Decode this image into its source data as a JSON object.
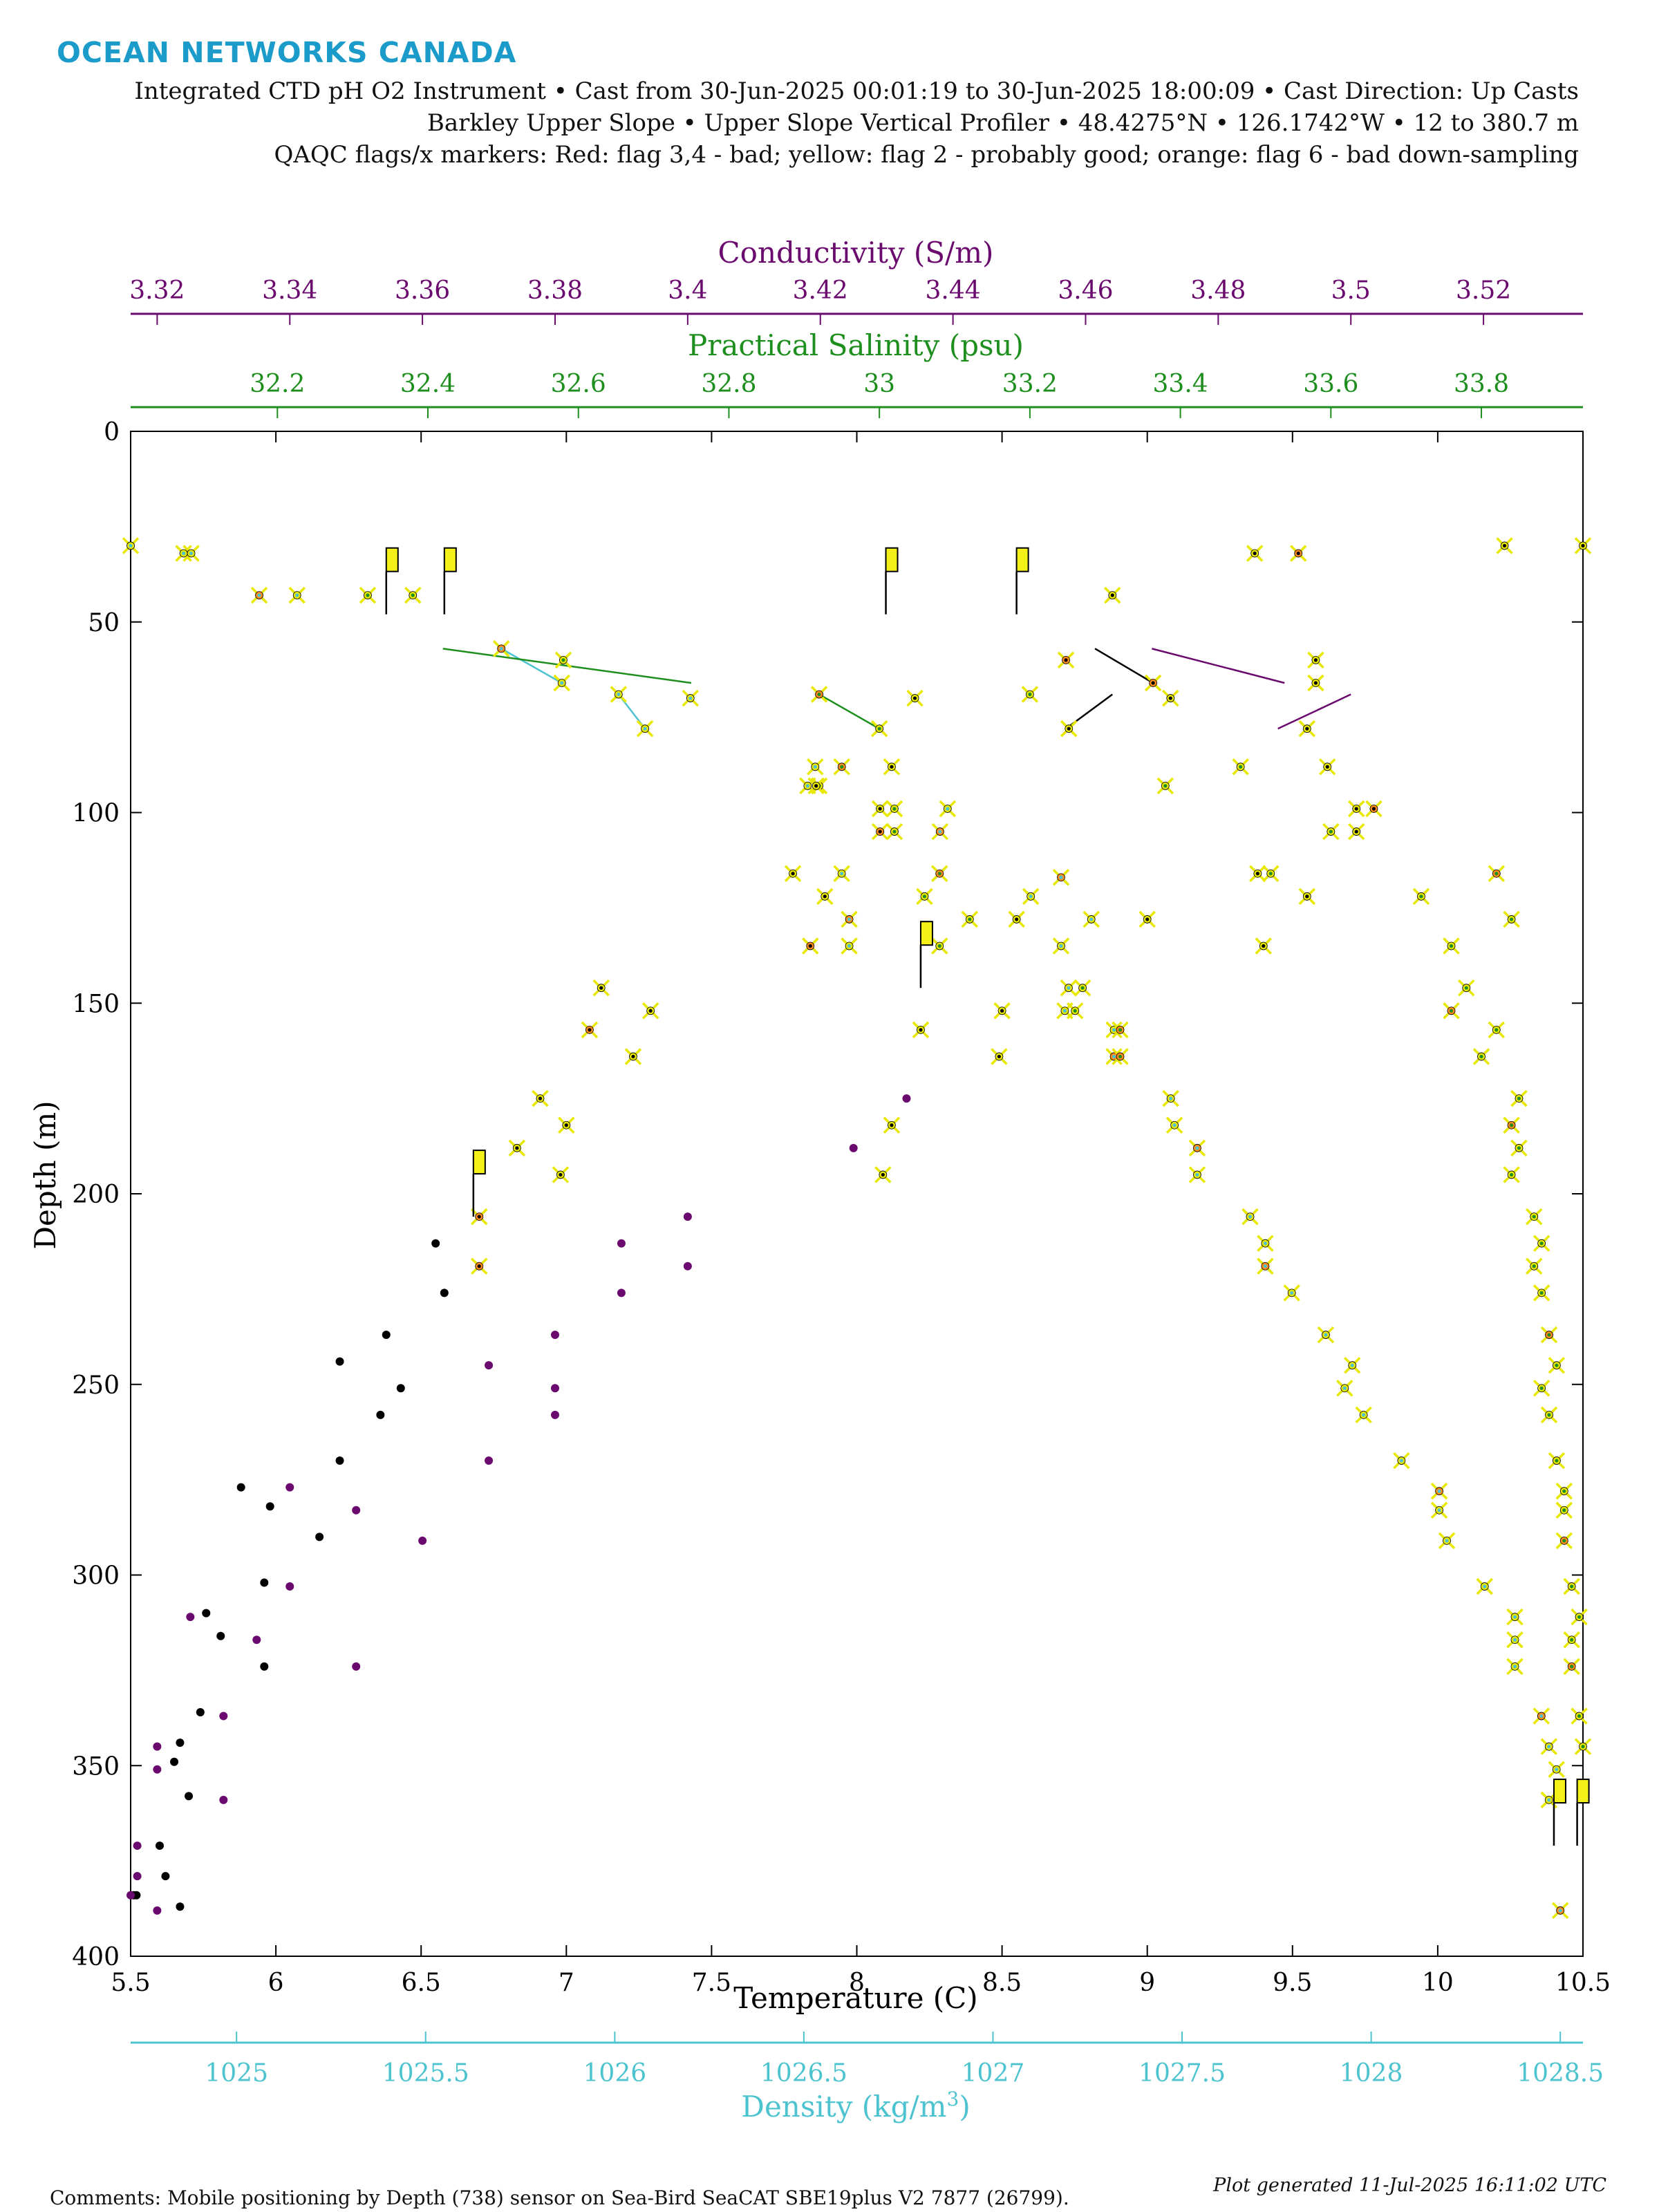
{
  "header": {
    "logo": "OCEAN NETWORKS CANADA",
    "line1": "Integrated CTD pH O2 Instrument • Cast from 30-Jun-2025 00:01:19 to 30-Jun-2025 18:00:09 • Cast Direction: Up Casts",
    "line2": "Barkley Upper Slope • Upper Slope Vertical Profiler • 48.4275°N • 126.1742°W • 12 to 380.7 m",
    "line3": "QAQC flags/x markers: Red: flag 3,4 - bad; yellow: flag 2 - probably good; orange: flag 6 - bad down-sampling"
  },
  "footer": {
    "comments": "Comments: Mobile positioning by Depth (738) sensor on Sea-Bird SeaCAT SBE19plus V2 7877 (26799).",
    "generated": "Plot generated 11-Jul-2025 16:11:02 UTC"
  },
  "colors": {
    "conductivity": "#6b0a6e",
    "salinity": "#1e8f1e",
    "density": "#4cc3cf",
    "temperature": "#000000",
    "flag_yellow": "#e8e800",
    "flag_orange": "#ff8c1a",
    "flag_red": "#e0201e",
    "flag_box": "#f3f01a"
  },
  "chart_data": {
    "type": "scatter",
    "ylabel": "Depth (m)",
    "y_axis": {
      "reversed": true,
      "range": [
        0,
        400
      ],
      "ticks": [
        "0",
        "50",
        "100",
        "150",
        "200",
        "250",
        "300",
        "350",
        "400"
      ]
    },
    "axes": {
      "temperature": {
        "label": "Temperature (C)",
        "range": [
          5.5,
          10.5
        ],
        "ticks": [
          "5.5",
          "6",
          "6.5",
          "7",
          "7.5",
          "8",
          "8.5",
          "9",
          "9.5",
          "10",
          "10.5"
        ],
        "position": "bottom"
      },
      "density": {
        "label": "Density (kg/m³)",
        "label_main": "Density (kg/m",
        "label_sup": "3",
        "label_end": ")",
        "range": [
          1024.72,
          1028.56
        ],
        "ticks": [
          "1025",
          "1025.5",
          "1026",
          "1026.5",
          "1027",
          "1027.5",
          "1028",
          "1028.5"
        ],
        "position": "bottom"
      },
      "conductivity": {
        "label": "Conductivity (S/m)",
        "range": [
          3.316,
          3.535
        ],
        "ticks": [
          "3.32",
          "3.34",
          "3.36",
          "3.38",
          "3.4",
          "3.42",
          "3.44",
          "3.46",
          "3.48",
          "3.5",
          "3.52"
        ],
        "position": "top"
      },
      "salinity": {
        "label": "Practical Salinity (psu)",
        "range": [
          32.005,
          33.935
        ],
        "ticks": [
          "32.2",
          "32.4",
          "32.6",
          "32.8",
          "33",
          "33.2",
          "33.4",
          "33.6",
          "33.8"
        ],
        "position": "top"
      }
    },
    "series": [
      {
        "key": "density",
        "flags": "x",
        "points": [
          [
            1024.72,
            30
          ],
          [
            1024.86,
            32
          ],
          [
            1024.88,
            32
          ],
          [
            1025.06,
            43
          ],
          [
            1025.16,
            43
          ],
          [
            1025.7,
            57
          ],
          [
            1025.86,
            66
          ],
          [
            1026.01,
            69
          ],
          [
            1026.08,
            78
          ],
          [
            1026.2,
            70
          ],
          [
            1026.62,
            128
          ],
          [
            1026.53,
            88
          ],
          [
            1026.51,
            93
          ],
          [
            1026.6,
            116
          ],
          [
            1026.62,
            135
          ],
          [
            1026.88,
            99
          ],
          [
            1026.86,
            105
          ],
          [
            1027.18,
            117
          ],
          [
            1027.1,
            122
          ],
          [
            1027.26,
            128
          ],
          [
            1027.18,
            135
          ],
          [
            1027.2,
            146
          ],
          [
            1027.19,
            152
          ],
          [
            1027.32,
            157
          ],
          [
            1027.32,
            164
          ],
          [
            1027.47,
            175
          ],
          [
            1027.48,
            182
          ],
          [
            1027.54,
            188
          ],
          [
            1027.54,
            195
          ],
          [
            1027.68,
            206
          ],
          [
            1027.72,
            213
          ],
          [
            1027.72,
            219
          ],
          [
            1027.79,
            226
          ],
          [
            1027.88,
            237
          ],
          [
            1027.95,
            245
          ],
          [
            1027.93,
            251
          ],
          [
            1027.98,
            258
          ],
          [
            1028.08,
            270
          ],
          [
            1028.18,
            278
          ],
          [
            1028.18,
            283
          ],
          [
            1028.2,
            291
          ],
          [
            1028.3,
            303
          ],
          [
            1028.38,
            311
          ],
          [
            1028.38,
            317
          ],
          [
            1028.38,
            324
          ],
          [
            1028.45,
            337
          ],
          [
            1028.47,
            345
          ],
          [
            1028.49,
            351
          ],
          [
            1028.47,
            359
          ],
          [
            1028.5,
            388
          ]
        ]
      },
      {
        "key": "salinity",
        "flags": "x",
        "points": [
          [
            32.32,
            43
          ],
          [
            32.38,
            43
          ],
          [
            32.58,
            60
          ],
          [
            32.92,
            69
          ],
          [
            33.0,
            78
          ],
          [
            32.95,
            88
          ],
          [
            32.92,
            93
          ],
          [
            33.02,
            99
          ],
          [
            33.02,
            105
          ],
          [
            33.06,
            122
          ],
          [
            33.08,
            116
          ],
          [
            33.12,
            128
          ],
          [
            33.08,
            135
          ],
          [
            33.2,
            69
          ],
          [
            33.27,
            146
          ],
          [
            33.26,
            152
          ],
          [
            33.32,
            157
          ],
          [
            33.32,
            164
          ],
          [
            33.38,
            93
          ],
          [
            33.48,
            88
          ],
          [
            33.52,
            116
          ],
          [
            33.6,
            105
          ],
          [
            33.72,
            122
          ],
          [
            33.76,
            135
          ],
          [
            33.82,
            116
          ],
          [
            33.84,
            128
          ],
          [
            33.78,
            146
          ],
          [
            33.76,
            152
          ],
          [
            33.82,
            157
          ],
          [
            33.8,
            164
          ],
          [
            33.85,
            175
          ],
          [
            33.84,
            182
          ],
          [
            33.85,
            188
          ],
          [
            33.84,
            195
          ],
          [
            33.87,
            206
          ],
          [
            33.88,
            213
          ],
          [
            33.87,
            219
          ],
          [
            33.88,
            226
          ],
          [
            33.89,
            237
          ],
          [
            33.9,
            245
          ],
          [
            33.88,
            251
          ],
          [
            33.89,
            258
          ],
          [
            33.9,
            270
          ],
          [
            33.91,
            278
          ],
          [
            33.91,
            283
          ],
          [
            33.91,
            291
          ],
          [
            33.92,
            303
          ],
          [
            33.93,
            311
          ],
          [
            33.92,
            317
          ],
          [
            33.92,
            324
          ],
          [
            33.93,
            337
          ],
          [
            33.935,
            345
          ]
        ]
      },
      {
        "key": "temperature",
        "flags": "x",
        "points": [
          [
            8.2,
            70
          ],
          [
            8.12,
            88
          ],
          [
            8.08,
            99
          ],
          [
            8.08,
            105
          ],
          [
            7.89,
            122
          ],
          [
            7.84,
            135
          ],
          [
            7.86,
            93
          ],
          [
            7.78,
            116
          ],
          [
            7.12,
            146
          ],
          [
            7.29,
            152
          ],
          [
            7.08,
            157
          ],
          [
            7.23,
            164
          ],
          [
            6.91,
            175
          ],
          [
            7.0,
            182
          ],
          [
            6.83,
            188
          ],
          [
            6.98,
            195
          ],
          [
            6.7,
            206
          ],
          [
            6.7,
            219
          ],
          [
            8.55,
            128
          ],
          [
            8.5,
            152
          ],
          [
            8.49,
            164
          ],
          [
            8.22,
            157
          ],
          [
            8.12,
            182
          ],
          [
            8.09,
            195
          ],
          [
            8.72,
            60
          ],
          [
            8.73,
            78
          ],
          [
            8.88,
            43
          ],
          [
            9.02,
            66
          ],
          [
            9.08,
            70
          ],
          [
            9.0,
            128
          ],
          [
            9.37,
            32
          ],
          [
            9.52,
            32
          ],
          [
            9.58,
            60
          ],
          [
            9.58,
            66
          ],
          [
            9.55,
            78
          ],
          [
            9.72,
            99
          ],
          [
            9.72,
            105
          ],
          [
            9.62,
            88
          ],
          [
            9.78,
            99
          ],
          [
            9.55,
            122
          ],
          [
            9.4,
            135
          ],
          [
            9.38,
            116
          ],
          [
            10.23,
            30
          ],
          [
            10.5,
            30
          ]
        ]
      },
      {
        "key": "temperature",
        "flags": "none",
        "points": [
          [
            6.55,
            213
          ],
          [
            6.58,
            226
          ],
          [
            6.38,
            237
          ],
          [
            6.22,
            244
          ],
          [
            6.43,
            251
          ],
          [
            6.36,
            258
          ],
          [
            6.22,
            270
          ],
          [
            5.88,
            277
          ],
          [
            5.98,
            282
          ],
          [
            6.15,
            290
          ],
          [
            5.96,
            302
          ],
          [
            5.76,
            310
          ],
          [
            5.81,
            316
          ],
          [
            5.96,
            324
          ],
          [
            5.74,
            336
          ],
          [
            5.67,
            344
          ],
          [
            5.65,
            349
          ],
          [
            5.7,
            358
          ],
          [
            5.6,
            371
          ],
          [
            5.62,
            379
          ],
          [
            5.67,
            387
          ],
          [
            5.52,
            384
          ],
          [
            5.51,
            384
          ]
        ]
      },
      {
        "key": "conductivity",
        "flags": "none",
        "points": [
          [
            3.433,
            175
          ],
          [
            3.425,
            188
          ],
          [
            3.4,
            206
          ],
          [
            3.39,
            213
          ],
          [
            3.4,
            219
          ],
          [
            3.39,
            226
          ],
          [
            3.38,
            237
          ],
          [
            3.37,
            245
          ],
          [
            3.38,
            251
          ],
          [
            3.38,
            258
          ],
          [
            3.37,
            270
          ],
          [
            3.34,
            277
          ],
          [
            3.35,
            283
          ],
          [
            3.36,
            291
          ],
          [
            3.34,
            303
          ],
          [
            3.325,
            311
          ],
          [
            3.335,
            317
          ],
          [
            3.35,
            324
          ],
          [
            3.33,
            337
          ],
          [
            3.32,
            345
          ],
          [
            3.32,
            351
          ],
          [
            3.33,
            359
          ],
          [
            3.317,
            371
          ],
          [
            3.317,
            379
          ],
          [
            3.32,
            388
          ],
          [
            3.316,
            384
          ]
        ]
      }
    ],
    "flag_markers": [
      [
        6.38,
        48
      ],
      [
        6.58,
        48
      ],
      [
        8.1,
        48
      ],
      [
        8.55,
        48
      ],
      [
        8.22,
        146
      ],
      [
        6.68,
        206
      ],
      [
        10.4,
        371
      ],
      [
        10.48,
        371
      ]
    ],
    "connector_lines": [
      {
        "key": "density",
        "from": [
          1025.7,
          57
        ],
        "to": [
          1025.86,
          66
        ]
      },
      {
        "key": "density",
        "from": [
          1026.01,
          69
        ],
        "to": [
          1026.08,
          78
        ]
      },
      {
        "key": "salinity",
        "from": [
          32.92,
          69
        ],
        "to": [
          33.0,
          78
        ]
      },
      {
        "key": "salinity",
        "from": [
          32.42,
          57
        ],
        "to": [
          32.75,
          66
        ]
      },
      {
        "key": "temperature",
        "from": [
          8.82,
          57
        ],
        "to": [
          9.02,
          66
        ]
      },
      {
        "key": "temperature",
        "from": [
          8.88,
          69
        ],
        "to": [
          8.72,
          78
        ]
      },
      {
        "key": "conductivity",
        "from": [
          3.47,
          57
        ],
        "to": [
          3.49,
          66
        ]
      },
      {
        "key": "conductivity",
        "from": [
          3.5,
          69
        ],
        "to": [
          3.489,
          78
        ]
      }
    ]
  }
}
